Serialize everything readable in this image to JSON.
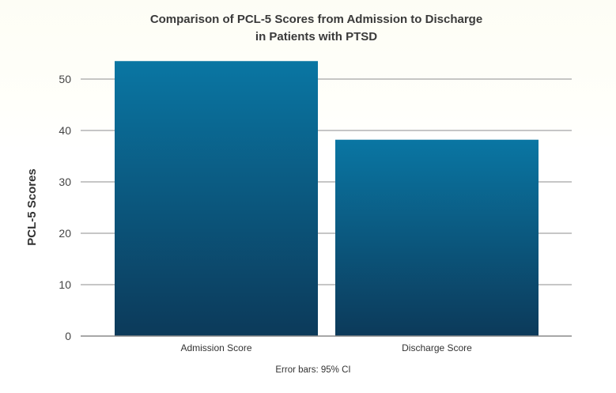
{
  "chart_data": {
    "type": "bar",
    "title_lines": [
      "Comparison of PCL-5 Scores from Admission to Discharge",
      "in Patients with PTSD"
    ],
    "xlabel": "",
    "ylabel": "PCL-5 Scores",
    "categories": [
      "Admission Score",
      "Discharge Score"
    ],
    "values": [
      53.5,
      38.2
    ],
    "ylim": [
      0,
      50
    ],
    "yticks": [
      0,
      10,
      20,
      30,
      40,
      50
    ],
    "grid": true,
    "note": "Error bars: 95% CI",
    "colors": {
      "bar_top": "#0a76a3",
      "bar_bottom": "#0c3a5a",
      "grid": "#b3b3b3"
    }
  }
}
